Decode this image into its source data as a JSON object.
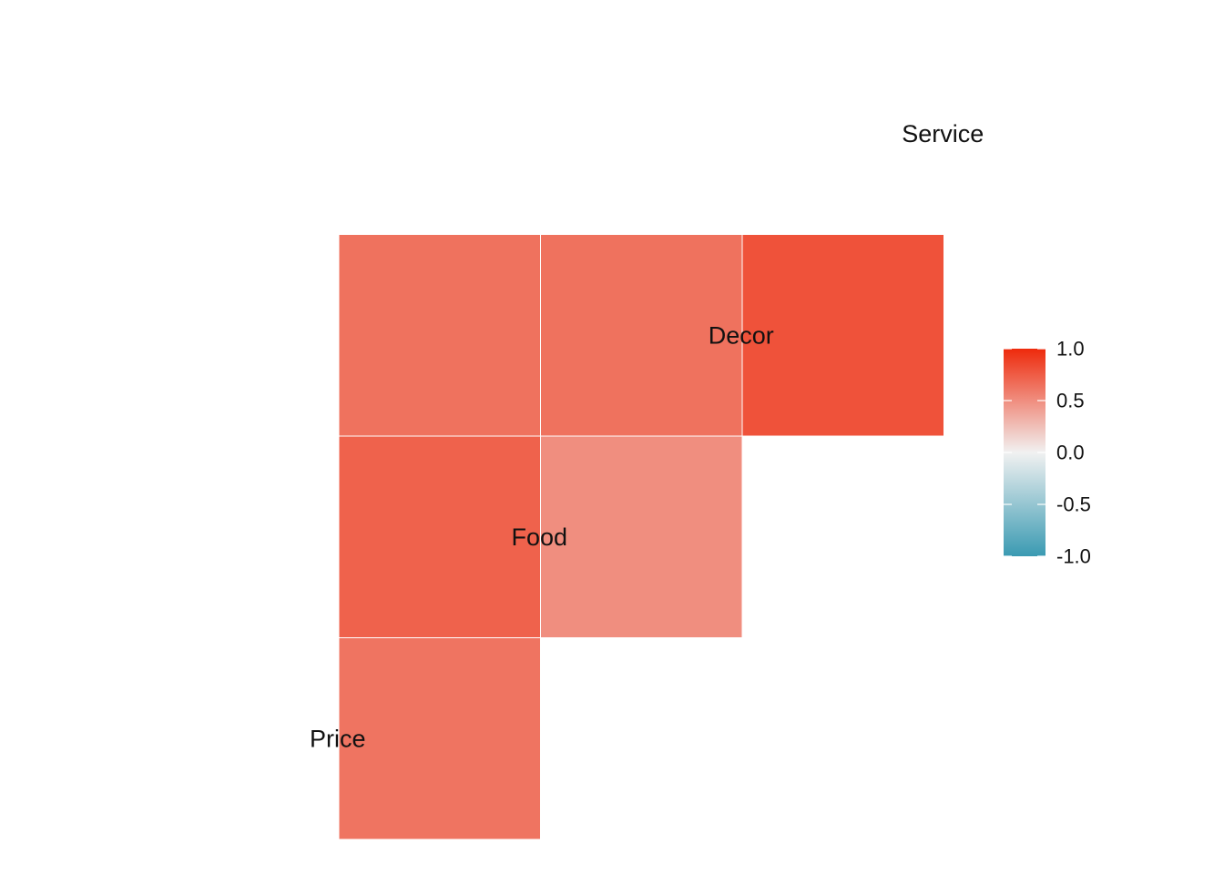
{
  "chart_data": {
    "type": "heatmap",
    "variables": [
      "Price",
      "Food",
      "Decor",
      "Service"
    ],
    "cells": [
      {
        "row": "Service",
        "col": "Price",
        "value": 0.64
      },
      {
        "row": "Decor",
        "col": "Price",
        "value": 0.72
      },
      {
        "row": "Decor",
        "col": "Food",
        "value": 0.5
      },
      {
        "row": "Food",
        "col": "Price",
        "value": 0.63
      },
      {
        "row": "Service",
        "col": "Decor",
        "value": 0.8
      },
      {
        "row": "Service",
        "col": "Food",
        "value": 0.64
      }
    ],
    "legend": {
      "range": [
        -1,
        1
      ],
      "ticks": [
        1.0,
        0.5,
        0.0,
        -0.5,
        -1.0
      ],
      "tick_labels": [
        "1.0",
        "0.5",
        "0.0",
        "-0.5",
        "-1.0"
      ],
      "placement": "right"
    },
    "colors": {
      "low": "#3A9AB2",
      "mid": "#F1F1F1",
      "high": "#EE2A0C"
    },
    "grid": false
  }
}
